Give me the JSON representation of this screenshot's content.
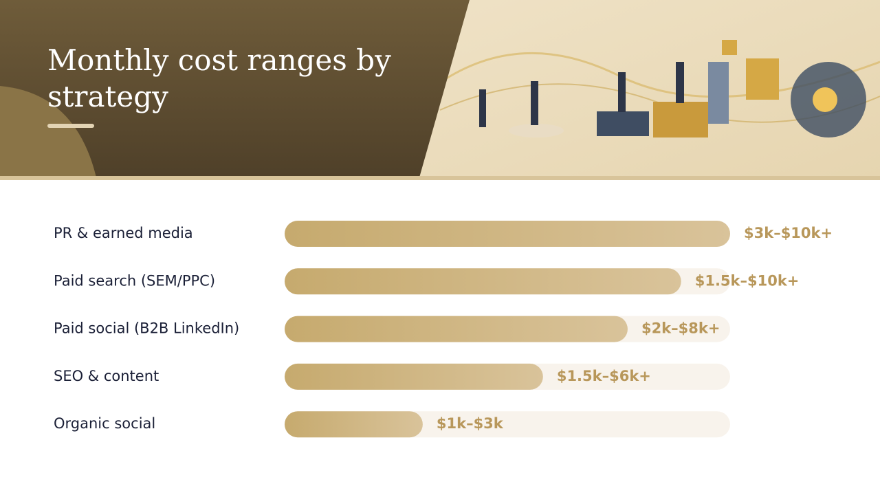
{
  "title": "Monthly cost ranges by strategy",
  "scale_max": 100,
  "rows": [
    {
      "label": "PR & earned media",
      "range": "$3k–$10k+",
      "fill": 100
    },
    {
      "label": "Paid search (SEM/PPC)",
      "range": "$1.5k–$10k+",
      "fill": 89
    },
    {
      "label": "Paid social (B2B LinkedIn)",
      "range": "$2k–$8k+",
      "fill": 77
    },
    {
      "label": "SEO & content",
      "range": "$1.5k–$6k+",
      "fill": 58
    },
    {
      "label": "Organic social",
      "range": "$1k–$3k",
      "fill": 31
    }
  ]
}
